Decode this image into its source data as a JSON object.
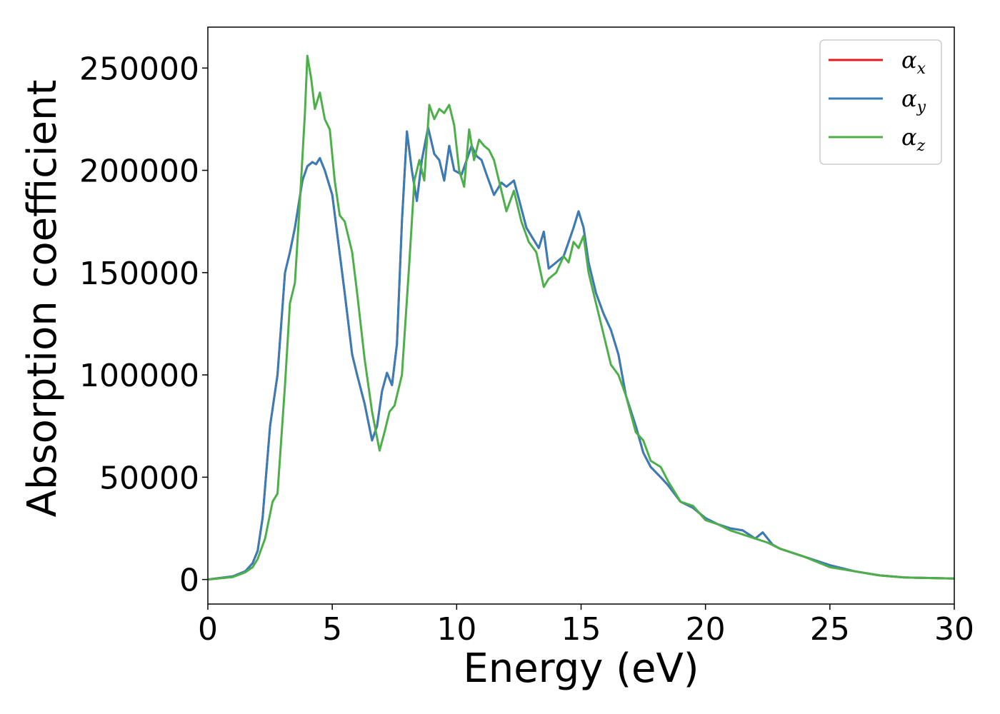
{
  "chart_data": {
    "type": "line",
    "title": "",
    "xlabel": "Energy (eV)",
    "ylabel": "Absorption coefficient",
    "xlim": [
      0,
      30
    ],
    "ylim": [
      -12000,
      270000
    ],
    "xticks": [
      0,
      5,
      10,
      15,
      20,
      25,
      30
    ],
    "xtick_labels": [
      "0",
      "5",
      "10",
      "15",
      "20",
      "25",
      "30"
    ],
    "yticks": [
      0,
      50000,
      100000,
      150000,
      200000,
      250000
    ],
    "ytick_labels": [
      "0",
      "50000",
      "100000",
      "150000",
      "200000",
      "250000"
    ],
    "grid": false,
    "legend_position": "top-right",
    "series": [
      {
        "name": "αx",
        "legend_symbol": "α",
        "legend_sub": "x",
        "color": "#e41a1c",
        "x": [
          0,
          1,
          1.5,
          1.8,
          2,
          2.2,
          2.5,
          2.8,
          3.1,
          3.3,
          3.5,
          3.8,
          4.0,
          4.2,
          4.35,
          4.5,
          4.7,
          5.0,
          5.5,
          5.8,
          6.0,
          6.3,
          6.6,
          6.8,
          7.0,
          7.2,
          7.4,
          7.6,
          7.8,
          8.0,
          8.2,
          8.4,
          8.6,
          8.85,
          9.1,
          9.3,
          9.5,
          9.7,
          9.9,
          10.2,
          10.4,
          10.6,
          10.8,
          11.0,
          11.2,
          11.5,
          11.8,
          12.0,
          12.3,
          12.5,
          12.8,
          13.0,
          13.3,
          13.5,
          13.7,
          14.0,
          14.3,
          14.5,
          14.7,
          14.9,
          15.1,
          15.3,
          15.6,
          15.9,
          16.2,
          16.5,
          16.8,
          17.2,
          17.5,
          17.8,
          18.2,
          18.5,
          19.0,
          19.5,
          20.0,
          20.5,
          21.0,
          21.5,
          22.0,
          22.3,
          22.7,
          23.0,
          24.0,
          25.0,
          26.0,
          27.0,
          28.0,
          30.0
        ],
        "y": [
          0,
          1500,
          4000,
          8000,
          14000,
          30000,
          75000,
          100000,
          150000,
          160000,
          172000,
          195000,
          202000,
          204000,
          203000,
          206000,
          200000,
          188000,
          140000,
          110000,
          100000,
          86000,
          68000,
          75000,
          92000,
          101000,
          95000,
          115000,
          175000,
          219000,
          200000,
          185000,
          205000,
          221000,
          208000,
          205000,
          195000,
          212000,
          200000,
          198000,
          205000,
          212000,
          207000,
          205000,
          198000,
          188000,
          194000,
          192000,
          195000,
          186000,
          172000,
          168000,
          162000,
          170000,
          152000,
          155000,
          158000,
          165000,
          172000,
          180000,
          172000,
          155000,
          140000,
          130000,
          122000,
          110000,
          90000,
          75000,
          62000,
          55000,
          50000,
          46000,
          38000,
          35000,
          30000,
          27000,
          25000,
          24000,
          20000,
          23000,
          17000,
          15000,
          11000,
          7000,
          4000,
          2000,
          1000,
          500
        ]
      },
      {
        "name": "αy",
        "legend_symbol": "α",
        "legend_sub": "y",
        "color": "#377eb8",
        "x": [
          0,
          1,
          1.5,
          1.8,
          2,
          2.2,
          2.5,
          2.8,
          3.1,
          3.3,
          3.5,
          3.8,
          4.0,
          4.2,
          4.35,
          4.5,
          4.7,
          5.0,
          5.5,
          5.8,
          6.0,
          6.3,
          6.6,
          6.8,
          7.0,
          7.2,
          7.4,
          7.6,
          7.8,
          8.0,
          8.2,
          8.4,
          8.6,
          8.85,
          9.1,
          9.3,
          9.5,
          9.7,
          9.9,
          10.2,
          10.4,
          10.6,
          10.8,
          11.0,
          11.2,
          11.5,
          11.8,
          12.0,
          12.3,
          12.5,
          12.8,
          13.0,
          13.3,
          13.5,
          13.7,
          14.0,
          14.3,
          14.5,
          14.7,
          14.9,
          15.1,
          15.3,
          15.6,
          15.9,
          16.2,
          16.5,
          16.8,
          17.2,
          17.5,
          17.8,
          18.2,
          18.5,
          19.0,
          19.5,
          20.0,
          20.5,
          21.0,
          21.5,
          22.0,
          22.3,
          22.7,
          23.0,
          24.0,
          25.0,
          26.0,
          27.0,
          28.0,
          30.0
        ],
        "y": [
          0,
          1500,
          4000,
          8000,
          14000,
          30000,
          75000,
          100000,
          150000,
          160000,
          172000,
          195000,
          202000,
          204000,
          203000,
          206000,
          200000,
          188000,
          140000,
          110000,
          100000,
          86000,
          68000,
          75000,
          92000,
          101000,
          95000,
          115000,
          175000,
          219000,
          200000,
          185000,
          205000,
          221000,
          208000,
          205000,
          195000,
          212000,
          200000,
          198000,
          205000,
          212000,
          207000,
          205000,
          198000,
          188000,
          194000,
          192000,
          195000,
          186000,
          172000,
          168000,
          162000,
          170000,
          152000,
          155000,
          158000,
          165000,
          172000,
          180000,
          172000,
          155000,
          140000,
          130000,
          122000,
          110000,
          90000,
          75000,
          62000,
          55000,
          50000,
          46000,
          38000,
          35000,
          30000,
          27000,
          25000,
          24000,
          20000,
          23000,
          17000,
          15000,
          11000,
          7000,
          4000,
          2000,
          1000,
          500
        ]
      },
      {
        "name": "αz",
        "legend_symbol": "α",
        "legend_sub": "z",
        "color": "#4daf4a",
        "x": [
          0,
          1,
          1.5,
          1.8,
          2.0,
          2.3,
          2.6,
          2.8,
          3.1,
          3.3,
          3.5,
          3.7,
          3.9,
          4.0,
          4.15,
          4.3,
          4.5,
          4.7,
          4.9,
          5.1,
          5.3,
          5.5,
          5.8,
          6.0,
          6.3,
          6.6,
          6.9,
          7.1,
          7.3,
          7.5,
          7.8,
          8.1,
          8.3,
          8.5,
          8.7,
          8.9,
          9.1,
          9.3,
          9.5,
          9.7,
          9.9,
          10.1,
          10.3,
          10.5,
          10.7,
          10.9,
          11.1,
          11.3,
          11.5,
          11.7,
          12.0,
          12.3,
          12.6,
          12.9,
          13.2,
          13.5,
          13.7,
          14.0,
          14.3,
          14.5,
          14.7,
          14.9,
          15.1,
          15.3,
          15.6,
          15.9,
          16.2,
          16.5,
          16.8,
          17.2,
          17.5,
          17.8,
          18.2,
          18.5,
          19.0,
          19.5,
          20.0,
          20.5,
          21.0,
          21.5,
          22.0,
          22.5,
          23.0,
          24.0,
          25.0,
          26.0,
          27.0,
          28.0,
          30.0
        ],
        "y": [
          0,
          1200,
          3500,
          6000,
          10000,
          20000,
          38000,
          42000,
          95000,
          135000,
          145000,
          185000,
          228000,
          256000,
          245000,
          230000,
          238000,
          225000,
          220000,
          195000,
          178000,
          175000,
          160000,
          140000,
          108000,
          82000,
          63000,
          72000,
          82000,
          85000,
          100000,
          155000,
          195000,
          205000,
          195000,
          232000,
          225000,
          230000,
          228000,
          232000,
          222000,
          200000,
          192000,
          220000,
          205000,
          215000,
          212000,
          210000,
          205000,
          195000,
          180000,
          190000,
          175000,
          165000,
          160000,
          143000,
          147000,
          150000,
          158000,
          155000,
          165000,
          162000,
          168000,
          150000,
          135000,
          120000,
          105000,
          100000,
          90000,
          72000,
          68000,
          58000,
          55000,
          48000,
          38000,
          36000,
          29000,
          27000,
          24000,
          22000,
          20000,
          18000,
          15000,
          11000,
          6000,
          4000,
          2000,
          1000,
          500
        ]
      }
    ]
  }
}
